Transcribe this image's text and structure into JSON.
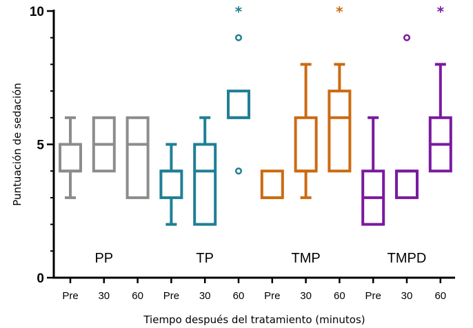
{
  "chart_data": {
    "type": "box",
    "title": "",
    "xlabel": "Tiempo después del tratamiento (minutos)",
    "ylabel": "Puntuación de sedación",
    "ylim": [
      0,
      10
    ],
    "yticks": [
      0,
      5,
      10
    ],
    "colors": {
      "PP": "#8c8c8c",
      "TP": "#1f7f94",
      "TMP": "#cc6a12",
      "TMPD": "#7a1aa0"
    },
    "groups": [
      {
        "name": "PP",
        "color_key": "PP",
        "boxes": [
          {
            "label": "Pre",
            "whisker_low": 3,
            "q1": 4,
            "median": 4,
            "q3": 5,
            "whisker_high": 6,
            "outliers": [],
            "significant": false
          },
          {
            "label": "30",
            "whisker_low": 4,
            "q1": 4,
            "median": 5,
            "q3": 6,
            "whisker_high": 6,
            "outliers": [],
            "significant": false
          },
          {
            "label": "60",
            "whisker_low": 3,
            "q1": 3,
            "median": 5,
            "q3": 6,
            "whisker_high": 6,
            "outliers": [],
            "significant": false
          }
        ]
      },
      {
        "name": "TP",
        "color_key": "TP",
        "boxes": [
          {
            "label": "Pre",
            "whisker_low": 2,
            "q1": 3,
            "median": 4,
            "q3": 4,
            "whisker_high": 5,
            "outliers": [],
            "significant": false
          },
          {
            "label": "30",
            "whisker_low": 2,
            "q1": 2,
            "median": 4,
            "q3": 5,
            "whisker_high": 6,
            "outliers": [],
            "significant": false
          },
          {
            "label": "60",
            "whisker_low": 6,
            "q1": 6,
            "median": 6,
            "q3": 7,
            "whisker_high": 7,
            "outliers": [
              4,
              9
            ],
            "significant": true
          }
        ]
      },
      {
        "name": "TMP",
        "color_key": "TMP",
        "boxes": [
          {
            "label": "Pre",
            "whisker_low": 3,
            "q1": 3,
            "median": 3,
            "q3": 4,
            "whisker_high": 4,
            "outliers": [],
            "significant": false
          },
          {
            "label": "30",
            "whisker_low": 3,
            "q1": 4,
            "median": 4,
            "q3": 6,
            "whisker_high": 8,
            "outliers": [],
            "significant": false
          },
          {
            "label": "60",
            "whisker_low": 4,
            "q1": 4,
            "median": 6,
            "q3": 7,
            "whisker_high": 8,
            "outliers": [],
            "significant": true
          }
        ]
      },
      {
        "name": "TMPD",
        "color_key": "TMPD",
        "boxes": [
          {
            "label": "Pre",
            "whisker_low": 2,
            "q1": 2,
            "median": 3,
            "q3": 4,
            "whisker_high": 6,
            "outliers": [],
            "significant": false
          },
          {
            "label": "30",
            "whisker_low": 3,
            "q1": 3,
            "median": 4,
            "q3": 4,
            "whisker_high": 4,
            "outliers": [
              9
            ],
            "significant": false
          },
          {
            "label": "60",
            "whisker_low": 4,
            "q1": 4,
            "median": 5,
            "q3": 6,
            "whisker_high": 8,
            "outliers": [],
            "significant": true
          }
        ]
      }
    ],
    "significance_marker": "*"
  }
}
